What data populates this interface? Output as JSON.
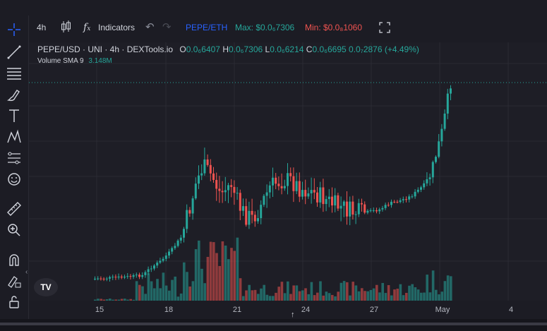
{
  "toolbar": {
    "interval": "4h",
    "indicators_label": "Indicators",
    "pair_label": "PEPE/ETH",
    "max_label": "Max: $0.0₆7306",
    "min_label": "Min: $0.0₈1060"
  },
  "legend": {
    "symbol": "PEPE/USD · UNI · 4h · DEXTools.io",
    "open_label": "O",
    "open_value": "0.0₆6407",
    "high_label": "H",
    "high_value": "0.0₆7306",
    "low_label": "L",
    "low_value": "0.0₆6214",
    "close_label": "C",
    "close_value": "0.0₆6695",
    "change_value": "0.0₇2876 (+4.49%)",
    "volume_label": "Volume SMA 9",
    "volume_value": "3.148M"
  },
  "xaxis": {
    "ticks": [
      "15",
      "18",
      "21",
      "24",
      "27",
      "May",
      "4"
    ]
  },
  "colors": {
    "up": "#26a69a",
    "down": "#ef5350",
    "accent": "#2962ff",
    "max": "#26a69a",
    "min": "#ef5350",
    "pair": "#2962ff"
  },
  "left_tools": [
    "crosshair-icon",
    "trendline-icon",
    "fib-icon",
    "brush-icon",
    "text-icon",
    "pattern-icon",
    "forecast-icon",
    "emoji-icon",
    "ruler-icon",
    "zoom-icon",
    "magnet-icon",
    "lock-drawing-icon",
    "unlock-icon"
  ]
}
